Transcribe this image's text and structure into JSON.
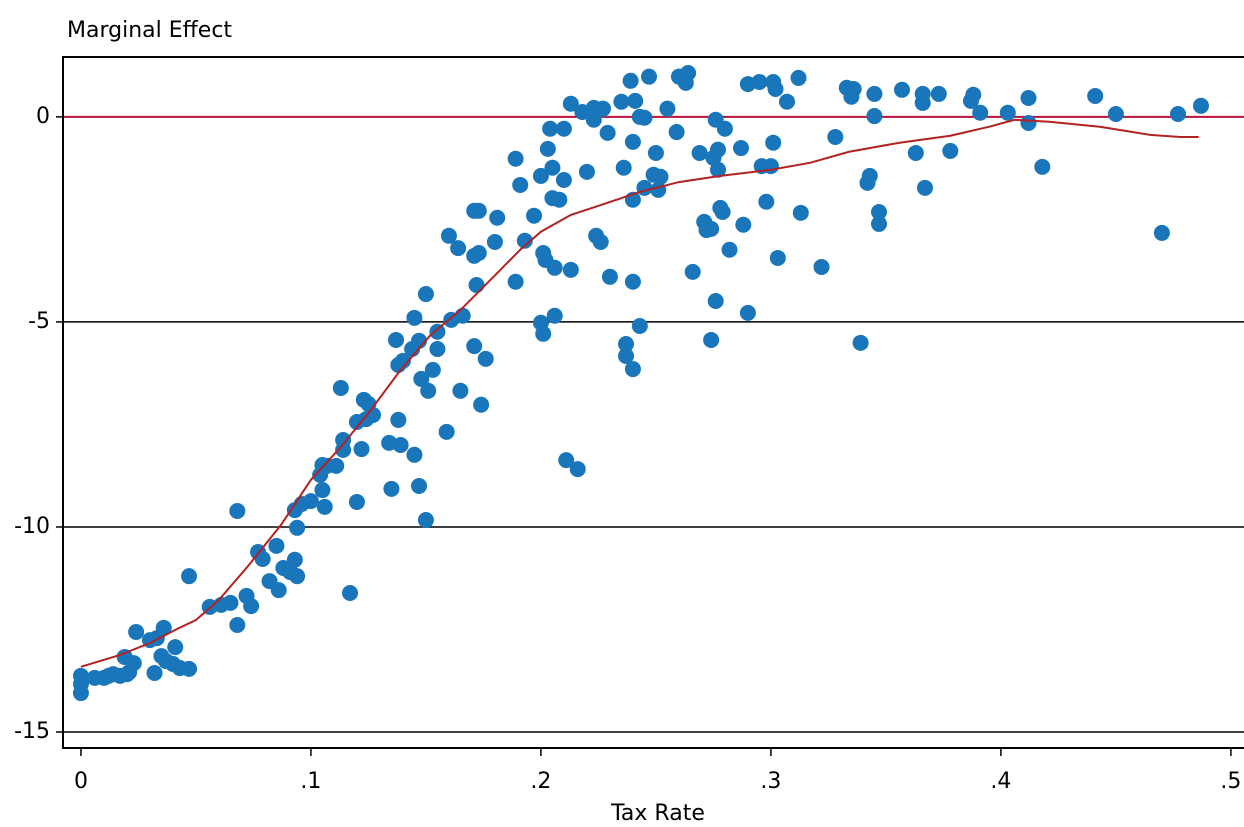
{
  "chart_data": {
    "type": "scatter",
    "title": "Marginal Effect",
    "x_label": "Tax Rate",
    "xlim": [
      -0.0078,
      0.5057
    ],
    "ylim": [
      -15.39,
      1.46
    ],
    "xticks": [
      {
        "value": 0,
        "label": "0"
      },
      {
        "value": 0.1,
        "label": ".1"
      },
      {
        "value": 0.2,
        "label": ".2"
      },
      {
        "value": 0.3,
        "label": ".3"
      },
      {
        "value": 0.4,
        "label": ".4"
      },
      {
        "value": 0.5,
        "label": ".5"
      }
    ],
    "yticks": [
      0,
      -5,
      -10,
      -15
    ],
    "grid": true,
    "grid_color": "#000000",
    "reference_lines": [
      {
        "value": 0,
        "color": "#c0143c"
      }
    ],
    "series": [
      {
        "type": "scatter",
        "color": "#1a76bb",
        "x": [
          0,
          0,
          0,
          0.006,
          0.01,
          0.012,
          0.014,
          0.017,
          0.019,
          0.02,
          0.021,
          0.023,
          0.024,
          0.03,
          0.032,
          0.033,
          0.035,
          0.036,
          0.037,
          0.04,
          0.041,
          0.043,
          0.047,
          0.047,
          0.056,
          0.061,
          0.065,
          0.068,
          0.068,
          0.072,
          0.074,
          0.077,
          0.079,
          0.082,
          0.085,
          0.086,
          0.088,
          0.091,
          0.093,
          0.094,
          0.093,
          0.094,
          0.096,
          0.1,
          0.104,
          0.105,
          0.105,
          0.106,
          0.107,
          0.111,
          0.113,
          0.114,
          0.114,
          0.117,
          0.12,
          0.12,
          0.122,
          0.123,
          0.124,
          0.125,
          0.127,
          0.134,
          0.135,
          0.137,
          0.138,
          0.138,
          0.139,
          0.14,
          0.144,
          0.145,
          0.145,
          0.147,
          0.147,
          0.148,
          0.15,
          0.15,
          0.151,
          0.153,
          0.155,
          0.155,
          0.159,
          0.16,
          0.161,
          0.164,
          0.165,
          0.166,
          0.171,
          0.171,
          0.171,
          0.172,
          0.173,
          0.173,
          0.174,
          0.176,
          0.18,
          0.181,
          0.189,
          0.189,
          0.191,
          0.193,
          0.197,
          0.2,
          0.2,
          0.201,
          0.201,
          0.202,
          0.203,
          0.204,
          0.205,
          0.205,
          0.206,
          0.206,
          0.208,
          0.21,
          0.211,
          0.21,
          0.213,
          0.213,
          0.216,
          0.218,
          0.22,
          0.223,
          0.223,
          0.224,
          0.226,
          0.227,
          0.229,
          0.23,
          0.235,
          0.236,
          0.237,
          0.237,
          0.239,
          0.24,
          0.24,
          0.24,
          0.24,
          0.241,
          0.243,
          0.243,
          0.245,
          0.245,
          0.247,
          0.249,
          0.25,
          0.251,
          0.252,
          0.255,
          0.259,
          0.26,
          0.263,
          0.264,
          0.266,
          0.269,
          0.271,
          0.272,
          0.274,
          0.274,
          0.275,
          0.276,
          0.276,
          0.277,
          0.277,
          0.278,
          0.279,
          0.28,
          0.282,
          0.287,
          0.288,
          0.29,
          0.29,
          0.295,
          0.296,
          0.298,
          0.3,
          0.301,
          0.301,
          0.302,
          0.303,
          0.307,
          0.312,
          0.313,
          0.322,
          0.328,
          0.333,
          0.335,
          0.336,
          0.339,
          0.342,
          0.343,
          0.345,
          0.345,
          0.347,
          0.347,
          0.357,
          0.363,
          0.366,
          0.366,
          0.367,
          0.373,
          0.378,
          0.387,
          0.388,
          0.391,
          0.403,
          0.412,
          0.412,
          0.418,
          0.441,
          0.45,
          0.47,
          0.477,
          0.487
        ],
        "values": [
          -13.63,
          -13.83,
          -14.05,
          -13.68,
          -13.68,
          -13.63,
          -13.59,
          -13.63,
          -13.17,
          -13.59,
          -13.54,
          -13.32,
          -12.56,
          -12.76,
          -13.56,
          -12.71,
          -13.15,
          -12.46,
          -13.27,
          -13.34,
          -12.93,
          -13.44,
          -13.46,
          -11.2,
          -11.95,
          -11.9,
          -11.85,
          -9.61,
          -12.39,
          -11.68,
          -11.93,
          -10.61,
          -10.78,
          -11.32,
          -10.46,
          -11.54,
          -11.0,
          -11.1,
          -10.8,
          -11.2,
          -9.59,
          -10.02,
          -9.44,
          -9.37,
          -8.73,
          -8.49,
          -9.1,
          -9.51,
          -8.51,
          -8.51,
          -6.61,
          -7.88,
          -8.12,
          -11.61,
          -9.39,
          -7.44,
          -8.1,
          -6.9,
          -7.37,
          -7.0,
          -7.27,
          -7.95,
          -9.07,
          -5.44,
          -7.39,
          -6.05,
          -8.0,
          -5.95,
          -5.66,
          -8.24,
          -4.9,
          -9.0,
          -5.46,
          -6.39,
          -9.83,
          -4.32,
          -6.68,
          -6.17,
          -5.66,
          -5.24,
          -7.68,
          -2.9,
          -4.95,
          -3.2,
          -6.68,
          -4.85,
          -2.29,
          -3.39,
          -5.59,
          -4.1,
          -2.29,
          -3.32,
          -7.02,
          -5.9,
          -3.05,
          -2.46,
          -4.02,
          -1.02,
          -1.66,
          -3.02,
          -2.41,
          -5.02,
          -1.44,
          -5.29,
          -3.32,
          -3.49,
          -0.78,
          -0.29,
          -1.98,
          -1.24,
          -4.85,
          -3.68,
          -2.02,
          -1.54,
          -8.37,
          -0.29,
          0.32,
          -3.73,
          -8.59,
          0.12,
          -1.34,
          0.22,
          -0.07,
          -2.9,
          -3.05,
          0.2,
          -0.39,
          -3.9,
          0.37,
          -1.24,
          -5.54,
          -5.83,
          0.88,
          -4.02,
          -6.15,
          -2.02,
          -0.61,
          0.39,
          -5.1,
          0.0,
          -0.02,
          -1.73,
          0.98,
          -1.41,
          -0.88,
          -1.78,
          -1.46,
          0.2,
          -0.37,
          0.98,
          0.83,
          1.07,
          -3.78,
          -0.88,
          -2.56,
          -2.76,
          -2.73,
          -5.44,
          -1.0,
          -4.49,
          -0.07,
          -1.29,
          -0.8,
          -2.22,
          -2.32,
          -0.29,
          -3.24,
          -0.76,
          -2.63,
          -4.78,
          0.8,
          0.85,
          -1.2,
          -2.07,
          -1.2,
          0.85,
          -0.63,
          0.68,
          -3.44,
          0.37,
          0.95,
          -2.34,
          -3.66,
          -0.49,
          0.71,
          0.49,
          0.68,
          -5.51,
          -1.61,
          -1.44,
          0.56,
          0.02,
          -2.32,
          -2.61,
          0.66,
          -0.88,
          0.34,
          0.56,
          -1.73,
          0.56,
          -0.83,
          0.39,
          0.54,
          0.1,
          0.1,
          0.46,
          -0.15,
          -1.22,
          0.51,
          0.07,
          -2.83,
          0.07,
          0.27
        ]
      },
      {
        "type": "line",
        "color": "#b22222",
        "x": [
          0,
          0.017,
          0.03,
          0.041,
          0.05,
          0.06,
          0.073,
          0.087,
          0.1,
          0.113,
          0.126,
          0.139,
          0.152,
          0.165,
          0.178,
          0.191,
          0.2,
          0.213,
          0.226,
          0.243,
          0.26,
          0.278,
          0.3,
          0.317,
          0.334,
          0.356,
          0.378,
          0.395,
          0.406,
          0.421,
          0.443,
          0.465,
          0.478,
          0.486
        ],
        "values": [
          -13.41,
          -13.12,
          -12.83,
          -12.51,
          -12.27,
          -11.78,
          -10.93,
          -9.95,
          -8.85,
          -8.05,
          -7.15,
          -6.17,
          -5.32,
          -4.71,
          -3.98,
          -3.24,
          -2.8,
          -2.39,
          -2.15,
          -1.83,
          -1.59,
          -1.44,
          -1.29,
          -1.12,
          -0.85,
          -0.63,
          -0.46,
          -0.24,
          -0.07,
          -0.12,
          -0.24,
          -0.44,
          -0.49,
          -0.49
        ]
      }
    ]
  }
}
